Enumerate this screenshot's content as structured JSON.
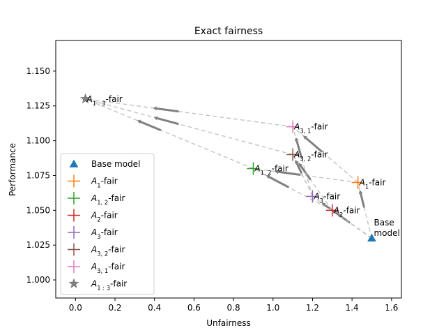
{
  "chart_data": {
    "type": "scatter",
    "title": "Exact fairness",
    "xlabel": "Unfairness",
    "ylabel": "Performance",
    "xlim": [
      -0.1,
      1.65
    ],
    "ylim": [
      0.987,
      1.172
    ],
    "x_ticks": [
      0.0,
      0.2,
      0.4,
      0.6,
      0.8,
      1.0,
      1.2,
      1.4,
      1.6
    ],
    "x_tick_labels": [
      "0.0",
      "0.2",
      "0.4",
      "0.6",
      "0.8",
      "1.0",
      "1.2",
      "1.4",
      "1.6"
    ],
    "y_ticks": [
      1.0,
      1.025,
      1.05,
      1.075,
      1.1,
      1.125,
      1.15
    ],
    "y_tick_labels": [
      "1.000",
      "1.025",
      "1.050",
      "1.075",
      "1.100",
      "1.125",
      "1.150"
    ],
    "grid": false,
    "legend_position": "lower-left",
    "points": [
      {
        "id": "base",
        "legend": "Base model",
        "label": "Base model",
        "label_lines": [
          "Base",
          "model"
        ],
        "x": 1.5,
        "y": 1.03,
        "marker": "triangle",
        "color": "#1f77b4"
      },
      {
        "id": "a1",
        "legend": "A1-fair",
        "label": "A1-fair",
        "sub": "1",
        "x": 1.43,
        "y": 1.07,
        "marker": "plus",
        "color": "#ff7f0e"
      },
      {
        "id": "a12",
        "legend": "A1,2-fair",
        "label": "A1,2-fair",
        "sub": "1, 2",
        "x": 0.9,
        "y": 1.08,
        "marker": "plus",
        "color": "#2ca02c"
      },
      {
        "id": "a2",
        "legend": "A2-fair",
        "label": "A2-fair",
        "sub": "2",
        "x": 1.3,
        "y": 1.05,
        "marker": "plus",
        "color": "#d62728"
      },
      {
        "id": "a3",
        "legend": "A3-fair",
        "label": "A3-fair",
        "sub": "3",
        "x": 1.2,
        "y": 1.06,
        "marker": "plus",
        "color": "#9467bd"
      },
      {
        "id": "a32",
        "legend": "A3,2-fair",
        "label": "A3,2-fair",
        "sub": "3, 2",
        "x": 1.1,
        "y": 1.09,
        "marker": "plus",
        "color": "#8c564b"
      },
      {
        "id": "a31",
        "legend": "A3,1-fair",
        "label": "A3,1-fair",
        "sub": "3, 1",
        "x": 1.1,
        "y": 1.11,
        "marker": "plus",
        "color": "#e377c2"
      },
      {
        "id": "a13",
        "legend": "A1:3-fair",
        "label": "A1:3-fair",
        "sub": "1 : 3",
        "x": 0.05,
        "y": 1.13,
        "marker": "star",
        "color": "#7f7f7f"
      }
    ],
    "connections": [
      {
        "from": "base",
        "to": "a1"
      },
      {
        "from": "base",
        "to": "a2"
      },
      {
        "from": "base",
        "to": "a3"
      },
      {
        "from": "a1",
        "to": "a12"
      },
      {
        "from": "a1",
        "to": "a31"
      },
      {
        "from": "a2",
        "to": "a32"
      },
      {
        "from": "a2",
        "to": "a12"
      },
      {
        "from": "a3",
        "to": "a31"
      },
      {
        "from": "a3",
        "to": "a32"
      },
      {
        "from": "a12",
        "to": "a13"
      },
      {
        "from": "a32",
        "to": "a13"
      },
      {
        "from": "a31",
        "to": "a13"
      }
    ]
  }
}
